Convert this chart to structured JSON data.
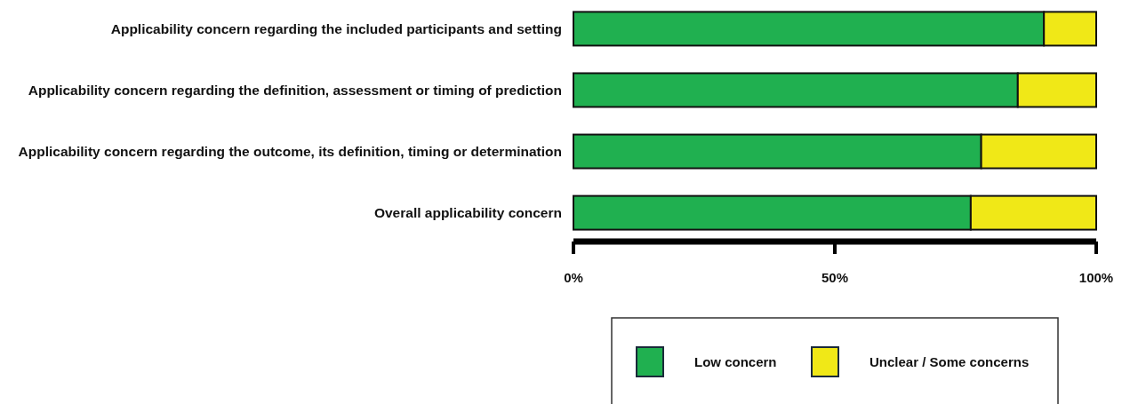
{
  "chart_data": {
    "type": "bar",
    "orientation": "horizontal",
    "stacked": true,
    "categories": [
      "Applicability concern regarding the included participants and setting",
      "Applicability concern regarding the definition, assessment or timing of prediction",
      "Applicability concern regarding the outcome, its definition, timing or determination",
      "Overall applicability concern"
    ],
    "series": [
      {
        "name": "Low concern",
        "color": "#20b050",
        "values": [
          90,
          85,
          78,
          76
        ]
      },
      {
        "name": "Unclear / Some concerns",
        "color": "#f0e817",
        "values": [
          10,
          15,
          22,
          24
        ]
      }
    ],
    "xlim": [
      0,
      100
    ],
    "xticks": [
      {
        "value": 0,
        "label": "0%"
      },
      {
        "value": 50,
        "label": "50%"
      },
      {
        "value": 100,
        "label": "100%"
      }
    ],
    "grid": false,
    "legend": "bottom"
  }
}
